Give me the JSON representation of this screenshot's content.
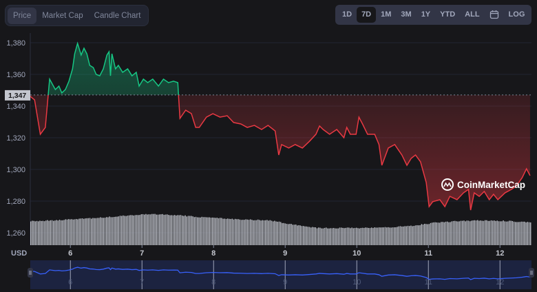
{
  "tabs": [
    {
      "label": "Price",
      "active": true
    },
    {
      "label": "Market Cap",
      "active": false
    },
    {
      "label": "Candle Chart",
      "active": false
    }
  ],
  "ranges": [
    {
      "label": "1D"
    },
    {
      "label": "7D",
      "active": true
    },
    {
      "label": "1M"
    },
    {
      "label": "3M"
    },
    {
      "label": "1Y"
    },
    {
      "label": "YTD"
    },
    {
      "label": "ALL"
    },
    {
      "icon": "calendar-icon"
    },
    {
      "label": "LOG"
    }
  ],
  "watermark": "CoinMarketCap",
  "colors": {
    "up": "#16c784",
    "down": "#ea3943",
    "navigator_line": "#3861fb"
  },
  "chart_data": {
    "type": "line",
    "currency_label": "USD",
    "baseline": 1347,
    "baseline_label": "1,347",
    "ylim": [
      1254,
      1390
    ],
    "xlim": [
      5.44,
      12.44
    ],
    "y_ticks": [
      {
        "v": 1380,
        "label": "1,380"
      },
      {
        "v": 1360,
        "label": "1,360"
      },
      {
        "v": 1340,
        "label": "1,340"
      },
      {
        "v": 1320,
        "label": "1,320"
      },
      {
        "v": 1300,
        "label": "1,300"
      },
      {
        "v": 1280,
        "label": "1,280"
      },
      {
        "v": 1260,
        "label": "1,260"
      }
    ],
    "x_ticks": [
      {
        "v": 6,
        "label": "6"
      },
      {
        "v": 7,
        "label": "7"
      },
      {
        "v": 8,
        "label": "8"
      },
      {
        "v": 9,
        "label": "9"
      },
      {
        "v": 10,
        "label": "10"
      },
      {
        "v": 11,
        "label": "11"
      },
      {
        "v": 12,
        "label": "12"
      }
    ],
    "grid": true,
    "price": [
      [
        5.44,
        1346.1
      ],
      [
        5.5,
        1343.9
      ],
      [
        5.58,
        1322.2
      ],
      [
        5.65,
        1326.5
      ],
      [
        5.69,
        1347
      ],
      [
        5.71,
        1357
      ],
      [
        5.79,
        1350.4
      ],
      [
        5.84,
        1352.6
      ],
      [
        5.88,
        1348.3
      ],
      [
        5.93,
        1350.4
      ],
      [
        5.98,
        1355.7
      ],
      [
        6.03,
        1363.5
      ],
      [
        6.06,
        1373
      ],
      [
        6.1,
        1379.6
      ],
      [
        6.15,
        1372.2
      ],
      [
        6.19,
        1376.5
      ],
      [
        6.23,
        1373
      ],
      [
        6.27,
        1365.7
      ],
      [
        6.32,
        1364.3
      ],
      [
        6.36,
        1360
      ],
      [
        6.41,
        1359.1
      ],
      [
        6.46,
        1363.5
      ],
      [
        6.51,
        1372.2
      ],
      [
        6.54,
        1374.3
      ],
      [
        6.56,
        1359.1
      ],
      [
        6.58,
        1373
      ],
      [
        6.63,
        1363.5
      ],
      [
        6.67,
        1365.7
      ],
      [
        6.73,
        1361.3
      ],
      [
        6.8,
        1363.5
      ],
      [
        6.86,
        1359.1
      ],
      [
        6.92,
        1361.3
      ],
      [
        6.96,
        1352.6
      ],
      [
        7.02,
        1357
      ],
      [
        7.08,
        1354.8
      ],
      [
        7.15,
        1357
      ],
      [
        7.23,
        1352.6
      ],
      [
        7.3,
        1357
      ],
      [
        7.37,
        1354.8
      ],
      [
        7.44,
        1355.7
      ],
      [
        7.5,
        1354.8
      ],
      [
        7.51,
        1347
      ],
      [
        7.53,
        1332.2
      ],
      [
        7.61,
        1337.4
      ],
      [
        7.69,
        1335.2
      ],
      [
        7.75,
        1326.5
      ],
      [
        7.8,
        1326.5
      ],
      [
        7.9,
        1333
      ],
      [
        7.99,
        1335.2
      ],
      [
        8.09,
        1333
      ],
      [
        8.19,
        1333.9
      ],
      [
        8.28,
        1329.6
      ],
      [
        8.38,
        1328.7
      ],
      [
        8.47,
        1326.5
      ],
      [
        8.57,
        1327.8
      ],
      [
        8.67,
        1325.2
      ],
      [
        8.76,
        1327.8
      ],
      [
        8.86,
        1324.3
      ],
      [
        8.91,
        1309.1
      ],
      [
        8.95,
        1315.7
      ],
      [
        9.05,
        1313.5
      ],
      [
        9.14,
        1315.7
      ],
      [
        9.24,
        1313.5
      ],
      [
        9.34,
        1317.8
      ],
      [
        9.43,
        1322.2
      ],
      [
        9.48,
        1327.4
      ],
      [
        9.53,
        1325.2
      ],
      [
        9.62,
        1322.2
      ],
      [
        9.72,
        1325.2
      ],
      [
        9.82,
        1320
      ],
      [
        9.86,
        1326.5
      ],
      [
        9.91,
        1322.2
      ],
      [
        9.99,
        1322.2
      ],
      [
        10.03,
        1333
      ],
      [
        10.08,
        1328.7
      ],
      [
        10.15,
        1322.2
      ],
      [
        10.25,
        1322.2
      ],
      [
        10.31,
        1315.7
      ],
      [
        10.35,
        1302.6
      ],
      [
        10.44,
        1313.5
      ],
      [
        10.53,
        1315.7
      ],
      [
        10.63,
        1309.1
      ],
      [
        10.7,
        1302.6
      ],
      [
        10.76,
        1307
      ],
      [
        10.82,
        1309.1
      ],
      [
        10.89,
        1304.8
      ],
      [
        10.97,
        1291.7
      ],
      [
        11.01,
        1276.5
      ],
      [
        11.06,
        1279.6
      ],
      [
        11.16,
        1280.9
      ],
      [
        11.23,
        1276.5
      ],
      [
        11.3,
        1283
      ],
      [
        11.4,
        1280.9
      ],
      [
        11.49,
        1285.2
      ],
      [
        11.56,
        1287.4
      ],
      [
        11.59,
        1274.3
      ],
      [
        11.64,
        1285.2
      ],
      [
        11.71,
        1283
      ],
      [
        11.78,
        1286.1
      ],
      [
        11.85,
        1280.9
      ],
      [
        11.91,
        1284.3
      ],
      [
        11.97,
        1280.9
      ],
      [
        12.07,
        1285.2
      ],
      [
        12.16,
        1287.4
      ],
      [
        12.23,
        1289.6
      ],
      [
        12.31,
        1294.8
      ],
      [
        12.37,
        1300.4
      ],
      [
        12.42,
        1296.1
      ]
    ],
    "volume_relative": [
      0.7,
      0.72,
      0.76,
      0.8,
      0.86,
      0.9,
      0.88,
      0.82,
      0.78,
      0.74,
      0.72,
      0.6,
      0.5,
      0.5,
      0.5,
      0.52,
      0.56,
      0.66,
      0.7,
      0.72,
      0.7,
      0.66
    ]
  }
}
